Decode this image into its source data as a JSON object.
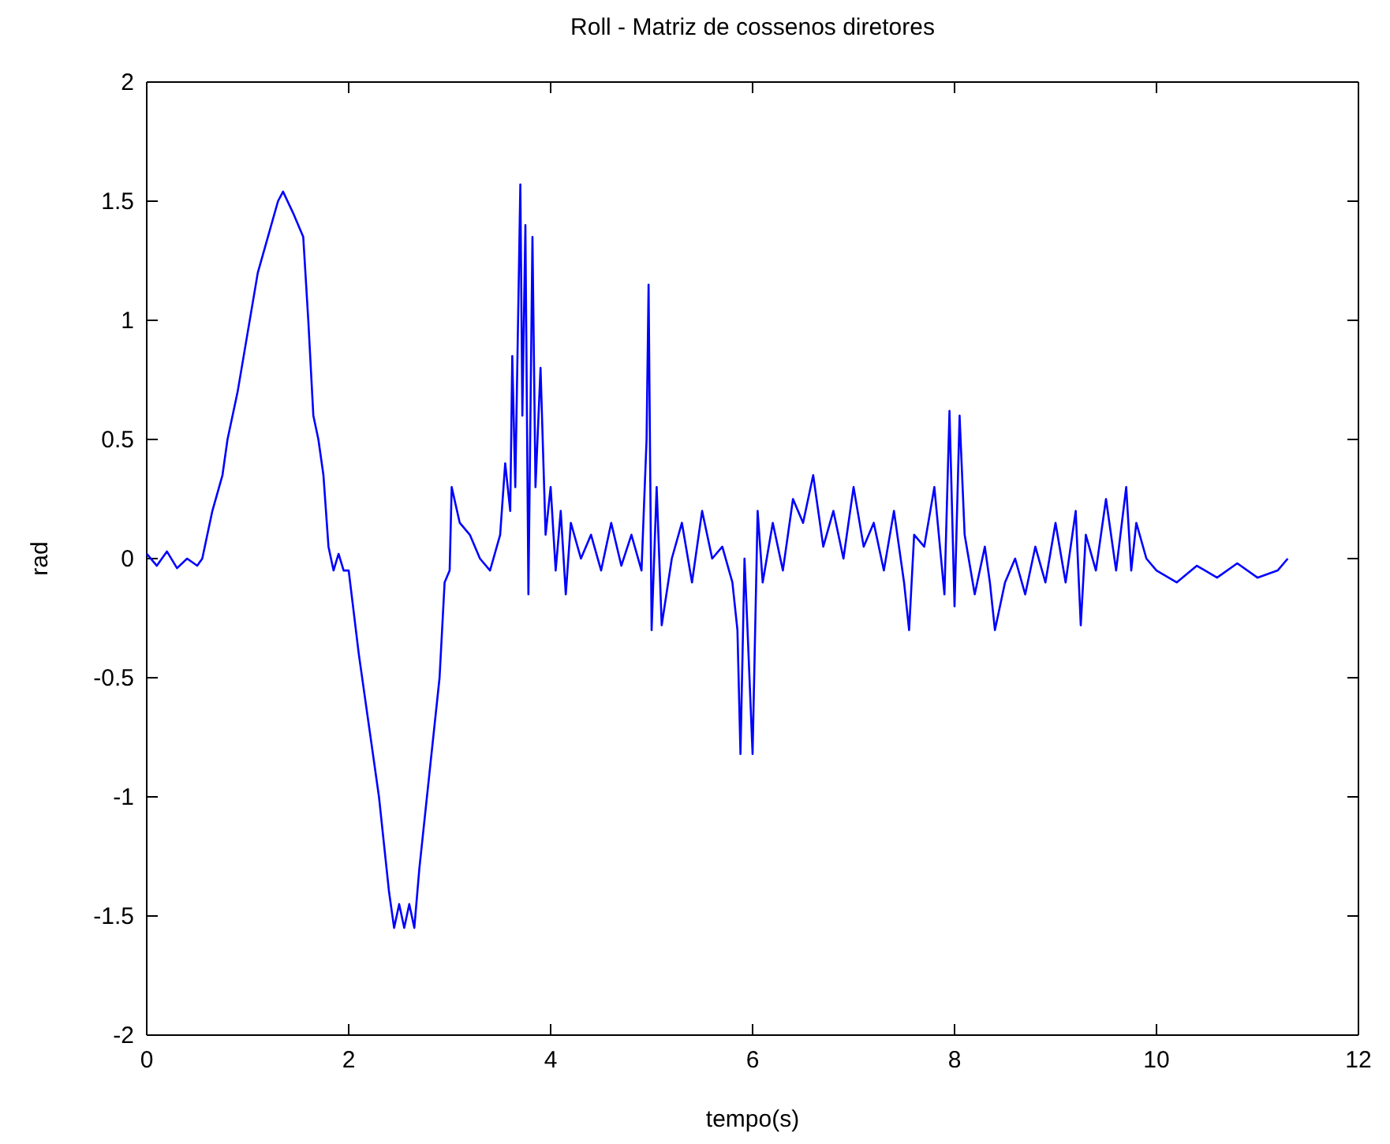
{
  "chart_data": {
    "type": "line",
    "title": "Roll - Matriz de cossenos diretores",
    "xlabel": "tempo(s)",
    "ylabel": "rad",
    "xlim": [
      0,
      12
    ],
    "xticks": [
      0,
      2,
      4,
      6,
      8,
      10,
      12
    ],
    "ylim": [
      -2,
      2
    ],
    "yticks": [
      -2,
      -1.5,
      -1,
      -0.5,
      0,
      0.5,
      1,
      1.5,
      2
    ],
    "grid": false,
    "series": [
      {
        "color": "#0000ff",
        "x": [
          0,
          0.1,
          0.2,
          0.3,
          0.4,
          0.5,
          0.55,
          0.65,
          0.75,
          0.8,
          0.9,
          1.0,
          1.1,
          1.2,
          1.3,
          1.35,
          1.45,
          1.55,
          1.6,
          1.65,
          1.7,
          1.75,
          1.8,
          1.85,
          1.9,
          1.95,
          2.0,
          2.1,
          2.2,
          2.3,
          2.4,
          2.45,
          2.5,
          2.55,
          2.6,
          2.65,
          2.7,
          2.8,
          2.9,
          2.95,
          3.0,
          3.02,
          3.1,
          3.2,
          3.3,
          3.4,
          3.5,
          3.55,
          3.6,
          3.62,
          3.65,
          3.7,
          3.72,
          3.75,
          3.78,
          3.82,
          3.85,
          3.9,
          3.95,
          4.0,
          4.05,
          4.1,
          4.15,
          4.2,
          4.3,
          4.4,
          4.5,
          4.6,
          4.7,
          4.8,
          4.9,
          4.95,
          4.97,
          5.0,
          5.05,
          5.1,
          5.2,
          5.3,
          5.4,
          5.5,
          5.6,
          5.7,
          5.8,
          5.85,
          5.88,
          5.92,
          5.95,
          6.0,
          6.05,
          6.1,
          6.2,
          6.3,
          6.4,
          6.5,
          6.6,
          6.7,
          6.8,
          6.9,
          7.0,
          7.1,
          7.2,
          7.3,
          7.4,
          7.5,
          7.55,
          7.6,
          7.7,
          7.8,
          7.9,
          7.95,
          8.0,
          8.05,
          8.1,
          8.2,
          8.3,
          8.35,
          8.4,
          8.5,
          8.6,
          8.7,
          8.8,
          8.9,
          9.0,
          9.1,
          9.2,
          9.25,
          9.3,
          9.4,
          9.5,
          9.6,
          9.7,
          9.75,
          9.8,
          9.9,
          10.0,
          10.2,
          10.4,
          10.6,
          10.8,
          11.0,
          11.2,
          11.3
        ],
        "values": [
          0.02,
          -0.03,
          0.03,
          -0.04,
          0.0,
          -0.03,
          0.0,
          0.2,
          0.35,
          0.5,
          0.7,
          0.95,
          1.2,
          1.35,
          1.5,
          1.54,
          1.45,
          1.35,
          1.0,
          0.6,
          0.5,
          0.35,
          0.05,
          -0.05,
          0.02,
          -0.05,
          -0.05,
          -0.4,
          -0.7,
          -1.0,
          -1.4,
          -1.55,
          -1.45,
          -1.55,
          -1.45,
          -1.55,
          -1.3,
          -0.9,
          -0.5,
          -0.1,
          -0.05,
          0.3,
          0.15,
          0.1,
          0.0,
          -0.05,
          0.1,
          0.4,
          0.2,
          0.85,
          0.3,
          1.57,
          0.6,
          1.4,
          -0.15,
          1.35,
          0.3,
          0.8,
          0.1,
          0.3,
          -0.05,
          0.2,
          -0.15,
          0.15,
          0.0,
          0.1,
          -0.05,
          0.15,
          -0.03,
          0.1,
          -0.05,
          0.5,
          1.15,
          -0.3,
          0.3,
          -0.28,
          0.0,
          0.15,
          -0.1,
          0.2,
          0.0,
          0.05,
          -0.1,
          -0.3,
          -0.82,
          0.0,
          -0.3,
          -0.82,
          0.2,
          -0.1,
          0.15,
          -0.05,
          0.25,
          0.15,
          0.35,
          0.05,
          0.2,
          0.0,
          0.3,
          0.05,
          0.15,
          -0.05,
          0.2,
          -0.1,
          -0.3,
          0.1,
          0.05,
          0.3,
          -0.15,
          0.62,
          -0.2,
          0.6,
          0.1,
          -0.15,
          0.05,
          -0.1,
          -0.3,
          -0.1,
          0.0,
          -0.15,
          0.05,
          -0.1,
          0.15,
          -0.1,
          0.2,
          -0.28,
          0.1,
          -0.05,
          0.25,
          -0.05,
          0.3,
          -0.05,
          0.15,
          0.0,
          -0.05,
          -0.1,
          -0.03,
          -0.08,
          -0.02,
          -0.08,
          -0.05,
          0.0
        ]
      }
    ]
  }
}
